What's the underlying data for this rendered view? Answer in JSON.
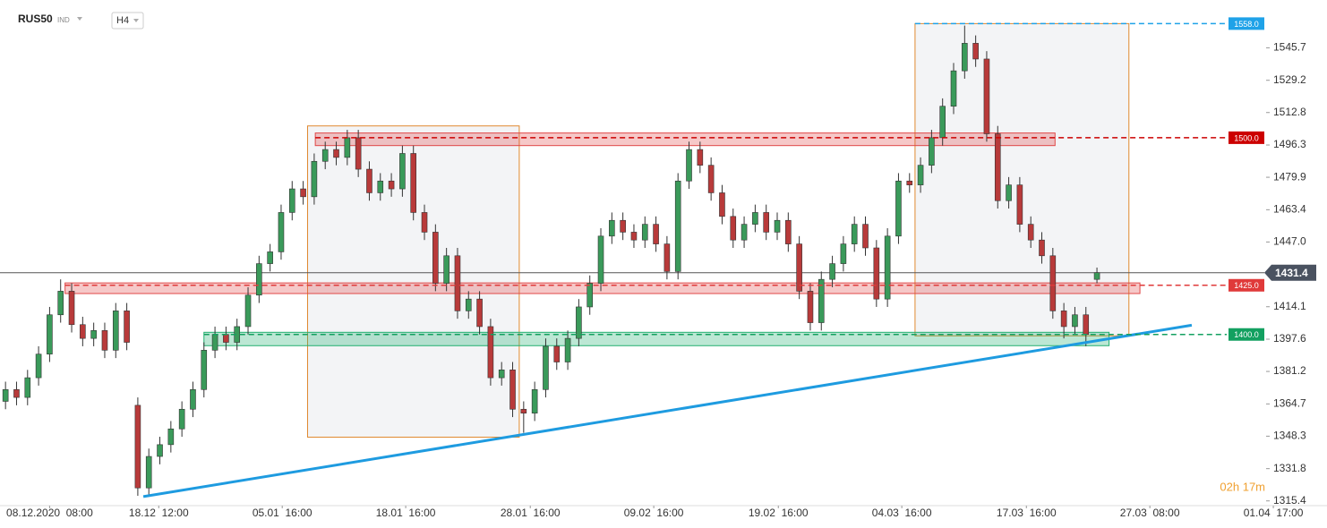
{
  "chart_data": {
    "type": "candlestick",
    "title": "RUS50",
    "subtitle": "IND",
    "timeframe": "H4",
    "countdown": "02h 17m",
    "up_color": "#3a9a5a",
    "down_color": "#b83a3a",
    "xlim": [
      -0.5,
      118
    ],
    "ylim": [
      1313,
      1570
    ],
    "xticks": [
      {
        "value": 4,
        "label": "08.12.2020  08:00"
      },
      {
        "value": 13.9,
        "label": "18.12  12:00"
      },
      {
        "value": 25.1,
        "label": "05.01  16:00"
      },
      {
        "value": 36.3,
        "label": "18.01  16:00"
      },
      {
        "value": 47.6,
        "label": "28.01  16:00"
      },
      {
        "value": 58.8,
        "label": "09.02  16:00"
      },
      {
        "value": 70.1,
        "label": "19.02  16:00"
      },
      {
        "value": 81.3,
        "label": "04.03  16:00"
      },
      {
        "value": 92.6,
        "label": "17.03  16:00"
      },
      {
        "value": 103.8,
        "label": "27.03  08:00"
      },
      {
        "value": 115,
        "label": "01.04  17:00"
      }
    ],
    "yticks": [
      1315.4,
      1331.8,
      1348.3,
      1364.7,
      1381.2,
      1397.6,
      1414.1,
      {
        "value": 1447,
        "label": "1447.0"
      },
      1463.4,
      1479.9,
      1496.3,
      1512.8,
      1529.2,
      1545.7
    ],
    "last_price": 1431.4,
    "open": [
      1366,
      1372,
      1368,
      1378,
      1390,
      1410,
      1422,
      1405,
      1398,
      1402,
      1392,
      1412,
      1364,
      1322,
      1338,
      1344,
      1352,
      1362,
      1372,
      1392,
      1400,
      1396,
      1404,
      1420,
      1436,
      1442,
      1462,
      1474,
      1470,
      1488,
      1494,
      1490,
      1500,
      1484,
      1472,
      1478,
      1474,
      1492,
      1462,
      1452,
      1426,
      1440,
      1412,
      1418,
      1404,
      1378,
      1382,
      1362,
      1360,
      1372,
      1394,
      1386,
      1398,
      1414,
      1426,
      1450,
      1458,
      1452,
      1448,
      1456,
      1446,
      1432,
      1478,
      1494,
      1486,
      1472,
      1460,
      1448,
      1456,
      1462,
      1452,
      1458,
      1446,
      1422,
      1406,
      1428,
      1436,
      1446,
      1456,
      1444,
      1418,
      1450,
      1478,
      1476,
      1486,
      1500,
      1516,
      1534,
      1548,
      1540,
      1502,
      1468,
      1476,
      1456,
      1448,
      1440,
      1412,
      1404,
      1410,
      1428
    ],
    "high": [
      1376,
      1376,
      1382,
      1394,
      1414,
      1428,
      1426,
      1409,
      1406,
      1406,
      1416,
      1416,
      1368,
      1342,
      1348,
      1356,
      1366,
      1376,
      1396,
      1404,
      1404,
      1408,
      1424,
      1440,
      1446,
      1466,
      1478,
      1478,
      1492,
      1498,
      1498,
      1504,
      1504,
      1488,
      1482,
      1482,
      1496,
      1496,
      1466,
      1456,
      1444,
      1444,
      1422,
      1422,
      1408,
      1386,
      1386,
      1366,
      1376,
      1398,
      1398,
      1402,
      1418,
      1430,
      1454,
      1462,
      1462,
      1456,
      1460,
      1460,
      1450,
      1482,
      1498,
      1498,
      1490,
      1476,
      1464,
      1460,
      1466,
      1466,
      1462,
      1462,
      1450,
      1426,
      1432,
      1440,
      1450,
      1460,
      1460,
      1448,
      1454,
      1482,
      1482,
      1490,
      1504,
      1520,
      1538,
      1557,
      1552,
      1544,
      1506,
      1480,
      1480,
      1460,
      1452,
      1444,
      1416,
      1414,
      1414,
      1434
    ],
    "low": [
      1362,
      1364,
      1364,
      1374,
      1386,
      1406,
      1401,
      1394,
      1394,
      1388,
      1388,
      1392,
      1318,
      1318,
      1334,
      1340,
      1348,
      1358,
      1368,
      1388,
      1392,
      1392,
      1400,
      1416,
      1432,
      1438,
      1458,
      1466,
      1466,
      1484,
      1486,
      1486,
      1480,
      1468,
      1468,
      1470,
      1470,
      1458,
      1448,
      1422,
      1422,
      1408,
      1408,
      1400,
      1374,
      1374,
      1358,
      1350,
      1356,
      1368,
      1382,
      1382,
      1394,
      1410,
      1422,
      1446,
      1448,
      1444,
      1444,
      1442,
      1428,
      1428,
      1474,
      1482,
      1468,
      1456,
      1444,
      1444,
      1452,
      1448,
      1448,
      1442,
      1418,
      1402,
      1402,
      1424,
      1432,
      1442,
      1440,
      1414,
      1414,
      1446,
      1472,
      1472,
      1482,
      1496,
      1512,
      1530,
      1536,
      1498,
      1464,
      1464,
      1452,
      1444,
      1436,
      1408,
      1398,
      1400,
      1394,
      1426
    ],
    "close": [
      1372,
      1368,
      1378,
      1390,
      1410,
      1422,
      1405,
      1398,
      1402,
      1392,
      1412,
      1396,
      1322,
      1338,
      1344,
      1352,
      1362,
      1372,
      1392,
      1400,
      1396,
      1404,
      1420,
      1436,
      1442,
      1462,
      1474,
      1470,
      1488,
      1494,
      1490,
      1500,
      1484,
      1472,
      1478,
      1474,
      1492,
      1462,
      1452,
      1426,
      1440,
      1412,
      1418,
      1404,
      1378,
      1382,
      1362,
      1360,
      1372,
      1394,
      1386,
      1398,
      1414,
      1426,
      1450,
      1458,
      1452,
      1448,
      1456,
      1446,
      1432,
      1478,
      1494,
      1486,
      1472,
      1460,
      1448,
      1456,
      1462,
      1452,
      1458,
      1446,
      1422,
      1406,
      1428,
      1436,
      1446,
      1456,
      1444,
      1418,
      1450,
      1478,
      1476,
      1486,
      1500,
      1516,
      1534,
      1548,
      1540,
      1502,
      1468,
      1476,
      1456,
      1448,
      1440,
      1412,
      1404,
      1410,
      1400,
      1431.4
    ],
    "boxes": [
      {
        "x": [
          27.4,
          46.6
        ],
        "y": [
          1347.8,
          1506.0
        ]
      },
      {
        "x": [
          82.5,
          101.9
        ],
        "y": [
          1399.3,
          1558.0
        ]
      }
    ],
    "zones": [
      {
        "x": [
          28.1,
          95.2
        ],
        "y": [
          1496.0,
          1502.4
        ],
        "color": "#e04848"
      },
      {
        "x": [
          5.4,
          102.9
        ],
        "y": [
          1420.8,
          1426.2
        ],
        "color": "#e04848"
      },
      {
        "x": [
          18.0,
          100.1
        ],
        "y": [
          1394.3,
          1401.1
        ],
        "color": "#22b070"
      }
    ],
    "levels": [
      {
        "value": 1558,
        "label": "1558.0",
        "from": 82.5,
        "color": "#1fa2e8"
      },
      {
        "value": 1500,
        "label": "1500.0",
        "from": 28.1,
        "color": "#cc0000"
      },
      {
        "value": 1425,
        "label": "1425.0",
        "from": 5.4,
        "color": "#e03a3a"
      },
      {
        "value": 1400,
        "label": "1400.0",
        "from": 18.0,
        "color": "#13a060"
      }
    ],
    "trendline": {
      "x": [
        12.5,
        107.6
      ],
      "y": [
        1317.6,
        1404.7
      ],
      "color": "#1e9be0"
    }
  }
}
